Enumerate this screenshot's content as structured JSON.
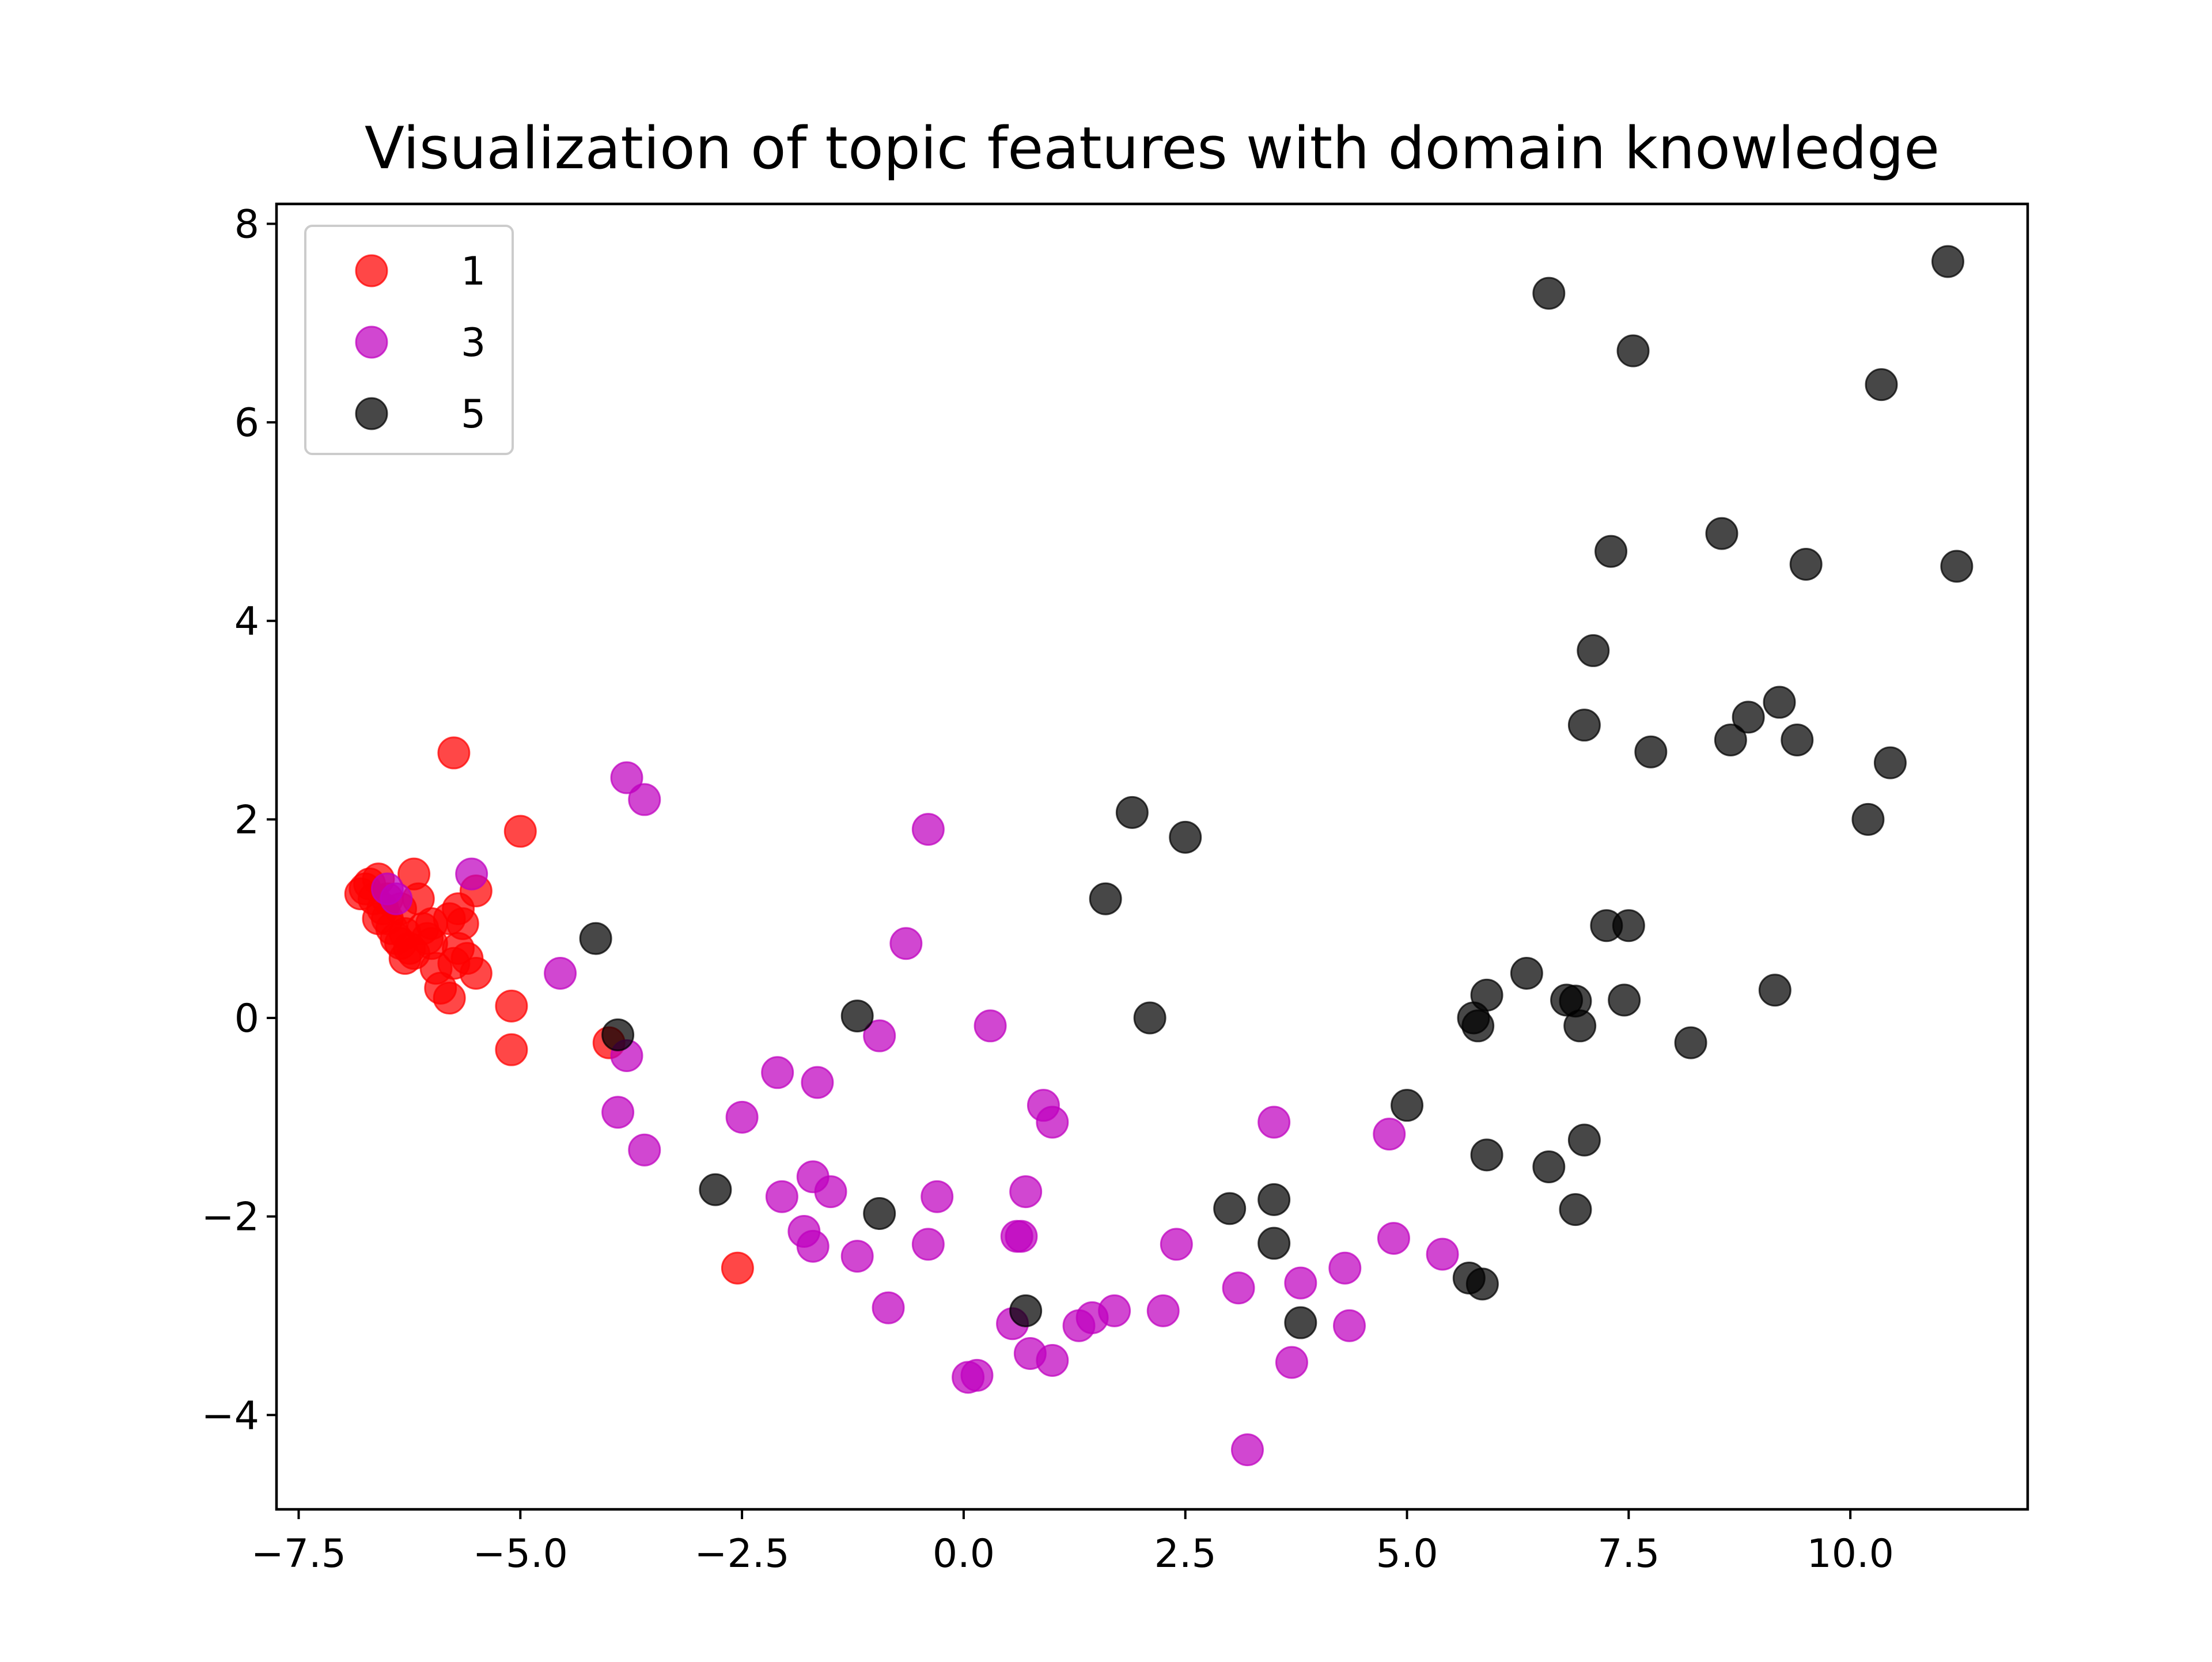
{
  "chart_data": {
    "type": "scatter",
    "title": "Visualization of topic features with domain knowledge",
    "xlabel": "",
    "ylabel": "",
    "xlim": [
      -7.75,
      12.0
    ],
    "ylim": [
      -4.95,
      8.2
    ],
    "xticks": [
      "−7.5",
      "−5.0",
      "−2.5",
      "0.0",
      "2.5",
      "5.0",
      "7.5",
      "10.0"
    ],
    "yticks": [
      "−4",
      "−2",
      "0",
      "2",
      "4",
      "6",
      "8"
    ],
    "legend_position": "top-left",
    "grid": false,
    "series": [
      {
        "name": "1",
        "color": "#ff0000",
        "points": [
          [
            -6.8,
            1.25
          ],
          [
            -6.75,
            1.3
          ],
          [
            -6.7,
            1.35
          ],
          [
            -6.65,
            1.2
          ],
          [
            -6.6,
            1.4
          ],
          [
            -6.55,
            1.1
          ],
          [
            -6.5,
            1.0
          ],
          [
            -6.45,
            0.9
          ],
          [
            -6.4,
            0.8
          ],
          [
            -6.35,
            0.75
          ],
          [
            -6.3,
            0.85
          ],
          [
            -6.25,
            0.7
          ],
          [
            -6.2,
            1.45
          ],
          [
            -6.15,
            1.2
          ],
          [
            -6.1,
            0.9
          ],
          [
            -6.05,
            0.8
          ],
          [
            -6.0,
            0.75
          ],
          [
            -6.3,
            0.6
          ],
          [
            -6.6,
            1.0
          ],
          [
            -6.2,
            0.65
          ],
          [
            -5.9,
            0.3
          ],
          [
            -5.8,
            0.2
          ],
          [
            -5.75,
            0.55
          ],
          [
            -5.7,
            0.7
          ],
          [
            -5.8,
            1.0
          ],
          [
            -5.7,
            1.1
          ],
          [
            -5.65,
            0.95
          ],
          [
            -5.6,
            0.6
          ],
          [
            -5.5,
            0.45
          ],
          [
            -5.5,
            1.28
          ],
          [
            -5.75,
            2.67
          ],
          [
            -5.0,
            1.88
          ],
          [
            -5.1,
            0.12
          ],
          [
            -5.1,
            -0.32
          ],
          [
            -4.0,
            -0.25
          ],
          [
            -2.55,
            -2.52
          ],
          [
            -6.5,
            1.2
          ],
          [
            -6.35,
            1.1
          ],
          [
            -6.0,
            0.95
          ],
          [
            -5.95,
            0.5
          ]
        ]
      },
      {
        "name": "3",
        "color": "#bf00bf",
        "points": [
          [
            -6.5,
            1.3
          ],
          [
            -6.4,
            1.2
          ],
          [
            -5.55,
            1.45
          ],
          [
            -4.55,
            0.45
          ],
          [
            -3.8,
            2.42
          ],
          [
            -3.6,
            2.2
          ],
          [
            -3.8,
            -0.38
          ],
          [
            -3.9,
            -0.95
          ],
          [
            -3.6,
            -1.33
          ],
          [
            -2.5,
            -1.0
          ],
          [
            -2.1,
            -0.55
          ],
          [
            -2.05,
            -1.8
          ],
          [
            -1.65,
            -0.65
          ],
          [
            -1.8,
            -2.15
          ],
          [
            -1.7,
            -2.3
          ],
          [
            -1.7,
            -1.6
          ],
          [
            -1.5,
            -1.75
          ],
          [
            -1.2,
            -2.4
          ],
          [
            -0.95,
            -0.18
          ],
          [
            -0.85,
            -2.92
          ],
          [
            -0.65,
            0.75
          ],
          [
            -0.4,
            1.9
          ],
          [
            -0.4,
            -2.28
          ],
          [
            -0.3,
            -1.8
          ],
          [
            0.05,
            -3.62
          ],
          [
            0.15,
            -3.6
          ],
          [
            0.3,
            -0.08
          ],
          [
            0.55,
            -3.08
          ],
          [
            0.6,
            -2.2
          ],
          [
            0.65,
            -2.2
          ],
          [
            0.7,
            -1.75
          ],
          [
            0.75,
            -3.38
          ],
          [
            0.9,
            -0.88
          ],
          [
            1.0,
            -1.05
          ],
          [
            1.0,
            -3.45
          ],
          [
            1.3,
            -3.1
          ],
          [
            1.45,
            -3.02
          ],
          [
            1.7,
            -2.95
          ],
          [
            2.25,
            -2.95
          ],
          [
            2.4,
            -2.28
          ],
          [
            3.1,
            -2.72
          ],
          [
            3.2,
            -4.35
          ],
          [
            3.5,
            -1.05
          ],
          [
            3.7,
            -3.47
          ],
          [
            3.8,
            -2.67
          ],
          [
            4.3,
            -2.52
          ],
          [
            4.35,
            -3.1
          ],
          [
            4.8,
            -1.17
          ],
          [
            4.85,
            -2.22
          ],
          [
            5.4,
            -2.38
          ]
        ]
      },
      {
        "name": "5",
        "color": "#000000",
        "points": [
          [
            -4.15,
            0.8
          ],
          [
            -3.9,
            -0.17
          ],
          [
            -2.8,
            -1.73
          ],
          [
            -1.2,
            0.02
          ],
          [
            -0.95,
            -1.97
          ],
          [
            0.7,
            -2.95
          ],
          [
            1.6,
            1.2
          ],
          [
            1.9,
            2.07
          ],
          [
            2.1,
            0.0
          ],
          [
            2.5,
            1.82
          ],
          [
            3.0,
            -1.92
          ],
          [
            3.5,
            -1.83
          ],
          [
            3.5,
            -2.27
          ],
          [
            3.8,
            -3.07
          ],
          [
            5.0,
            -0.88
          ],
          [
            5.7,
            -2.62
          ],
          [
            5.75,
            0.0
          ],
          [
            5.8,
            -0.08
          ],
          [
            5.85,
            -2.68
          ],
          [
            5.9,
            0.23
          ],
          [
            5.9,
            -1.38
          ],
          [
            6.35,
            0.45
          ],
          [
            6.6,
            -1.5
          ],
          [
            6.6,
            7.3
          ],
          [
            6.8,
            0.18
          ],
          [
            6.9,
            0.17
          ],
          [
            6.9,
            -1.93
          ],
          [
            6.95,
            -0.08
          ],
          [
            7.0,
            2.95
          ],
          [
            7.0,
            -1.23
          ],
          [
            7.1,
            3.7
          ],
          [
            7.25,
            0.93
          ],
          [
            7.3,
            4.7
          ],
          [
            7.45,
            0.18
          ],
          [
            7.5,
            0.93
          ],
          [
            7.55,
            6.72
          ],
          [
            7.75,
            2.68
          ],
          [
            8.2,
            -0.25
          ],
          [
            8.55,
            4.88
          ],
          [
            8.65,
            2.8
          ],
          [
            8.85,
            3.03
          ],
          [
            9.15,
            0.28
          ],
          [
            9.2,
            3.18
          ],
          [
            9.4,
            2.8
          ],
          [
            9.5,
            4.57
          ],
          [
            10.2,
            2.0
          ],
          [
            10.35,
            6.38
          ],
          [
            10.45,
            2.57
          ],
          [
            11.1,
            7.62
          ],
          [
            11.2,
            4.55
          ]
        ]
      }
    ]
  }
}
